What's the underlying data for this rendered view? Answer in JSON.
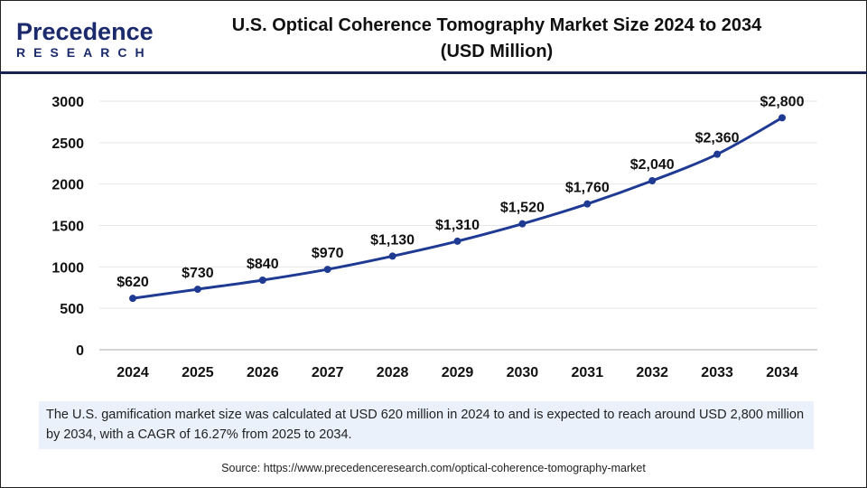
{
  "brand": {
    "logo_line1": "Precedence",
    "logo_line2": "RESEARCH"
  },
  "header": {
    "title_line1": "U.S. Optical Coherence Tomography Market Size 2024 to 2034",
    "title_line2": "(USD Million)"
  },
  "chart_data": {
    "type": "line",
    "title": "U.S. Optical Coherence Tomography Market Size 2024 to 2034 (USD Million)",
    "categories": [
      "2024",
      "2025",
      "2026",
      "2027",
      "2028",
      "2029",
      "2030",
      "2031",
      "2032",
      "2033",
      "2034"
    ],
    "values": [
      620,
      730,
      840,
      970,
      1130,
      1310,
      1520,
      1760,
      2040,
      2360,
      2800
    ],
    "data_labels": [
      "$620",
      "$730",
      "$840",
      "$970",
      "$1,130",
      "$1,310",
      "$1,520",
      "$1,760",
      "$2,040",
      "$2,360",
      "$2,800"
    ],
    "yticks": [
      "0",
      "500",
      "1000",
      "1500",
      "2000",
      "2500",
      "3000"
    ],
    "ylim": [
      0,
      3000
    ],
    "grid": "horizontal",
    "line_color": "#1f3a93"
  },
  "note": "The U.S. gamification market size was calculated at USD 620 million in 2024 to and is expected to reach around USD 2,800 million by 2034, with a CAGR of 16.27% from 2025 to 2034.",
  "source": "Source: https://www.precedenceresearch.com/optical-coherence-tomography-market"
}
